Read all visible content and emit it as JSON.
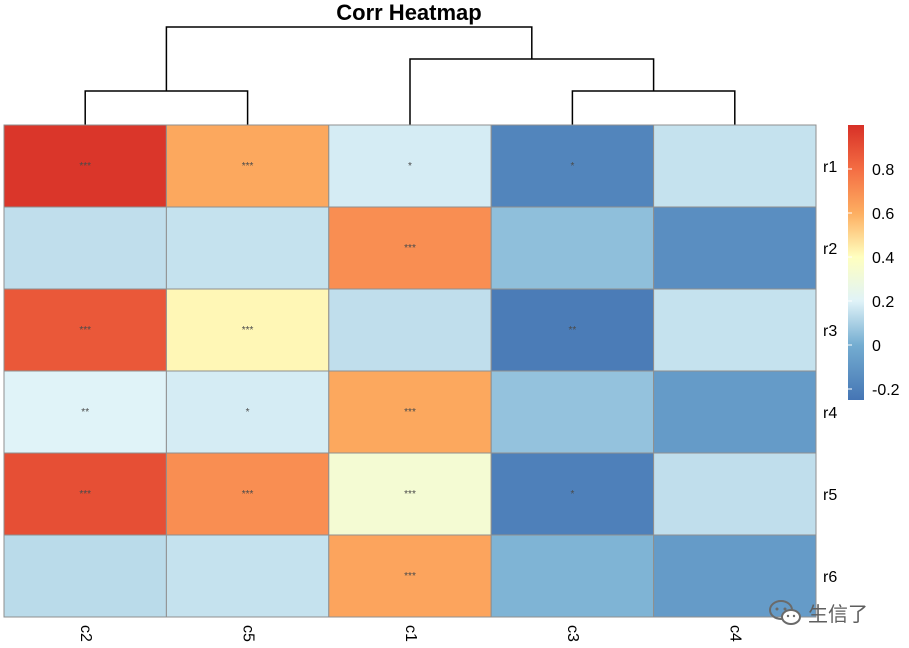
{
  "chart_data": {
    "type": "heatmap",
    "title": "Corr Heatmap",
    "rows": [
      "r1",
      "r2",
      "r3",
      "r4",
      "r5",
      "r6"
    ],
    "columns": [
      "c2",
      "c5",
      "c1",
      "c3",
      "c4"
    ],
    "values": [
      [
        0.98,
        0.62,
        0.18,
        -0.18,
        0.15
      ],
      [
        0.14,
        0.15,
        0.7,
        0.05,
        -0.14
      ],
      [
        0.87,
        0.42,
        0.14,
        -0.22,
        0.15
      ],
      [
        0.2,
        0.18,
        0.62,
        0.06,
        -0.08
      ],
      [
        0.9,
        0.7,
        0.33,
        -0.2,
        0.14
      ],
      [
        0.13,
        0.15,
        0.63,
        0.02,
        -0.08
      ]
    ],
    "significance": [
      [
        "***",
        "***",
        "*",
        "*",
        ""
      ],
      [
        "",
        "",
        "***",
        "",
        ""
      ],
      [
        "***",
        "***",
        "",
        "**",
        ""
      ],
      [
        "**",
        "*",
        "***",
        "",
        ""
      ],
      [
        "***",
        "***",
        "***",
        "*",
        ""
      ],
      [
        "",
        "",
        "***",
        "",
        ""
      ]
    ],
    "color_scale": {
      "min": -0.25,
      "max": 1.0,
      "stops": [
        {
          "value": -0.25,
          "color": "#4575b4"
        },
        {
          "value": 0.0,
          "color": "#74add1"
        },
        {
          "value": 0.2,
          "color": "#e0f3f8"
        },
        {
          "value": 0.4,
          "color": "#ffffbf"
        },
        {
          "value": 0.6,
          "color": "#fdae61"
        },
        {
          "value": 0.8,
          "color": "#f46d43"
        },
        {
          "value": 1.0,
          "color": "#d73027"
        }
      ],
      "ticks": [
        -0.2,
        0,
        0.2,
        0.4,
        0.6,
        0.8
      ]
    },
    "column_dendrogram": {
      "merges": [
        {
          "left": "c3",
          "right": "c4",
          "height": 1
        },
        {
          "left": "c1",
          "right": "c3,c4",
          "height": 2
        },
        {
          "left": "c2",
          "right": "c5",
          "height": 1
        },
        {
          "left": "c2,c5",
          "right": "c1,c3,c4",
          "height": 3
        }
      ]
    },
    "legend_position": "right"
  },
  "watermark": {
    "icon": "wechat-icon",
    "text": "生信了"
  }
}
